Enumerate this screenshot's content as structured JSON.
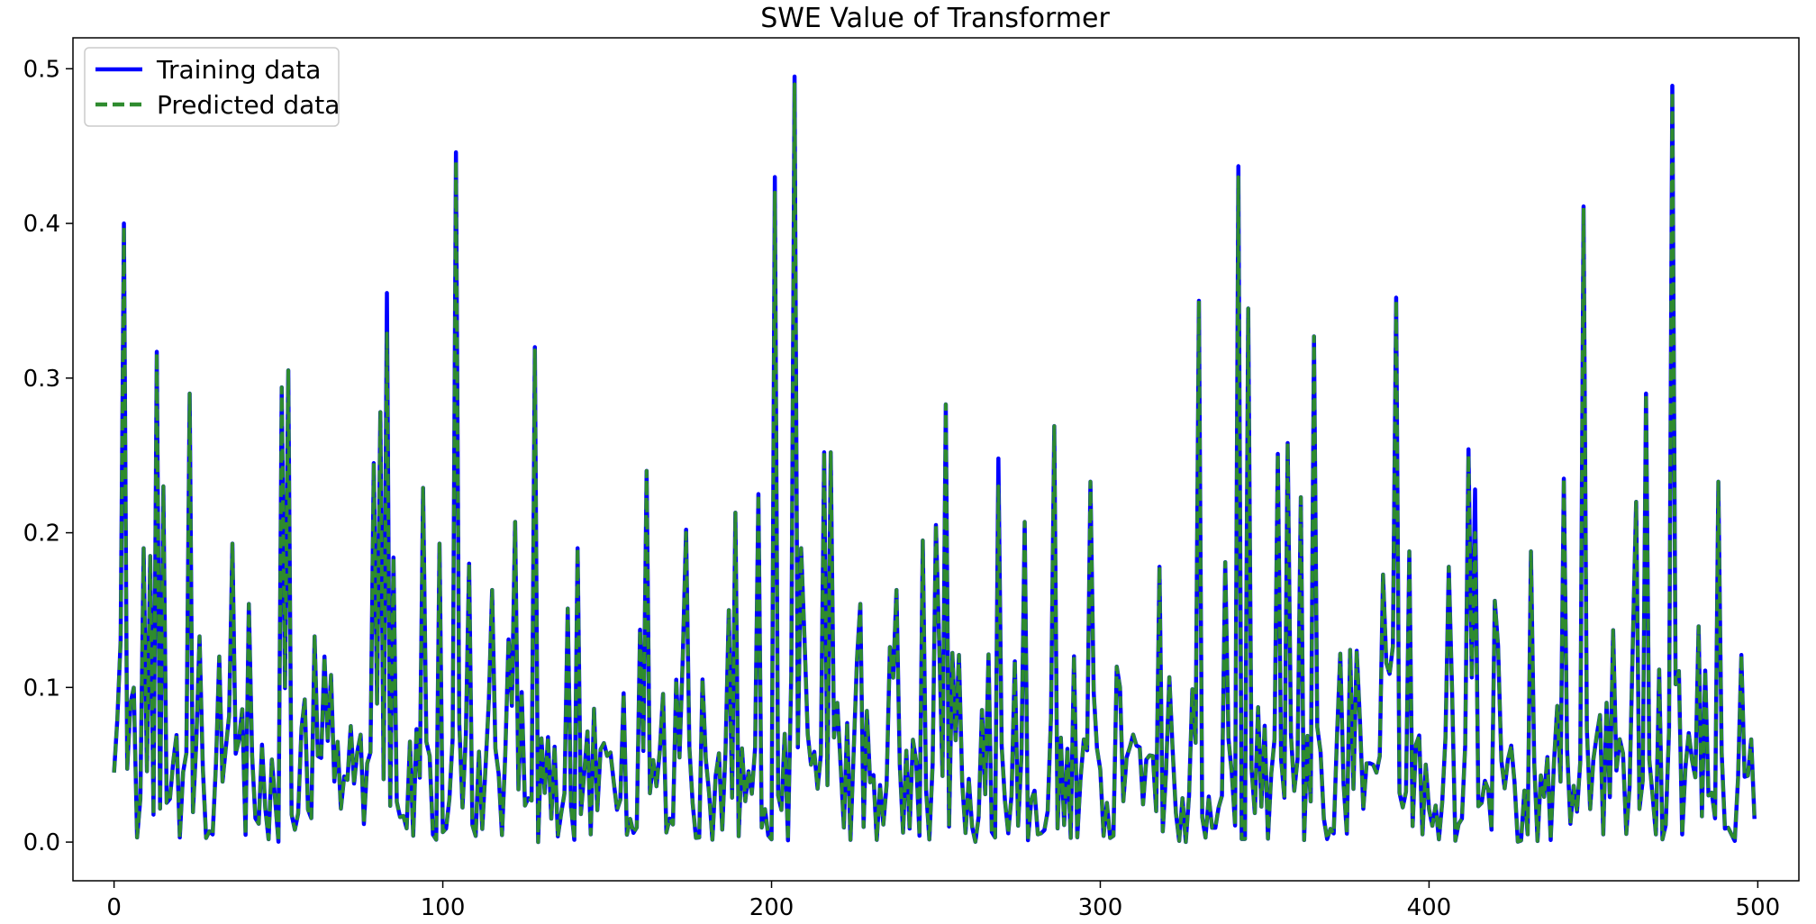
{
  "chart_data": {
    "type": "line",
    "title": "SWE Value of Transformer",
    "xlabel": "",
    "ylabel": "",
    "xlim": [
      -12.5,
      512.5
    ],
    "ylim": [
      -0.025,
      0.52
    ],
    "xticks": [
      0,
      100,
      200,
      300,
      400,
      500
    ],
    "yticks": [
      0.0,
      0.1,
      0.2,
      0.3,
      0.4,
      0.5
    ],
    "ytick_labels": [
      "0.0",
      "0.1",
      "0.2",
      "0.3",
      "0.4",
      "0.5"
    ],
    "grid": false,
    "legend": "top-left",
    "x_range": [
      0,
      499
    ],
    "series": [
      {
        "name": "Training data",
        "style": "solid",
        "color": "#0000ff",
        "peaks": [
          [
            0,
            0.045
          ],
          [
            3,
            0.4
          ],
          [
            5,
            0.09
          ],
          [
            7,
            0.003
          ],
          [
            9,
            0.19
          ],
          [
            11,
            0.185
          ],
          [
            13,
            0.317
          ],
          [
            15,
            0.23
          ],
          [
            17,
            0.028
          ],
          [
            20,
            0.003
          ],
          [
            23,
            0.29
          ],
          [
            26,
            0.133
          ],
          [
            29,
            0.007
          ],
          [
            32,
            0.12
          ],
          [
            36,
            0.193
          ],
          [
            41,
            0.154
          ],
          [
            51,
            0.294
          ],
          [
            53,
            0.305
          ],
          [
            55,
            0.008
          ],
          [
            61,
            0.133
          ],
          [
            64,
            0.12
          ],
          [
            72,
            0.075
          ],
          [
            79,
            0.245
          ],
          [
            81,
            0.278
          ],
          [
            83,
            0.355
          ],
          [
            85,
            0.184
          ],
          [
            94,
            0.229
          ],
          [
            99,
            0.193
          ],
          [
            104,
            0.446
          ],
          [
            108,
            0.18
          ],
          [
            110,
            0.004
          ],
          [
            115,
            0.163
          ],
          [
            122,
            0.207
          ],
          [
            128,
            0.32
          ],
          [
            138,
            0.151
          ],
          [
            141,
            0.19
          ],
          [
            145,
            0.005
          ],
          [
            162,
            0.24
          ],
          [
            171,
            0.105
          ],
          [
            174,
            0.202
          ],
          [
            187,
            0.15
          ],
          [
            189,
            0.213
          ],
          [
            196,
            0.225
          ],
          [
            201,
            0.43
          ],
          [
            204,
            0.07
          ],
          [
            207,
            0.495
          ],
          [
            209,
            0.19
          ],
          [
            216,
            0.252
          ],
          [
            218,
            0.252
          ],
          [
            220,
            0.09
          ],
          [
            227,
            0.154
          ],
          [
            238,
            0.163
          ],
          [
            246,
            0.195
          ],
          [
            250,
            0.205
          ],
          [
            253,
            0.283
          ],
          [
            257,
            0.121
          ],
          [
            269,
            0.248
          ],
          [
            277,
            0.207
          ],
          [
            286,
            0.269
          ],
          [
            297,
            0.233
          ],
          [
            301,
            0.004
          ],
          [
            306,
            0.1
          ],
          [
            318,
            0.178
          ],
          [
            330,
            0.35
          ],
          [
            338,
            0.181
          ],
          [
            342,
            0.437
          ],
          [
            343,
            0.002
          ],
          [
            345,
            0.345
          ],
          [
            354,
            0.251
          ],
          [
            357,
            0.258
          ],
          [
            361,
            0.223
          ],
          [
            365,
            0.327
          ],
          [
            369,
            0.002
          ],
          [
            383,
            0.05
          ],
          [
            386,
            0.173
          ],
          [
            390,
            0.352
          ],
          [
            394,
            0.188
          ],
          [
            406,
            0.178
          ],
          [
            412,
            0.254
          ],
          [
            414,
            0.228
          ],
          [
            420,
            0.156
          ],
          [
            428,
            0.001
          ],
          [
            431,
            0.188
          ],
          [
            441,
            0.235
          ],
          [
            447,
            0.411
          ],
          [
            453,
            0.005
          ],
          [
            456,
            0.137
          ],
          [
            463,
            0.22
          ],
          [
            466,
            0.29
          ],
          [
            469,
            0.005
          ],
          [
            474,
            0.489
          ],
          [
            477,
            0.005
          ],
          [
            488,
            0.233
          ],
          [
            492,
            0.005
          ],
          [
            495,
            0.121
          ],
          [
            499,
            0.015
          ]
        ]
      },
      {
        "name": "Predicted data",
        "style": "dashed",
        "color": "#2e8b2e",
        "peaks": [
          [
            0,
            0.045
          ],
          [
            3,
            0.398
          ],
          [
            5,
            0.09
          ],
          [
            7,
            0.003
          ],
          [
            9,
            0.19
          ],
          [
            11,
            0.185
          ],
          [
            13,
            0.316
          ],
          [
            15,
            0.23
          ],
          [
            17,
            0.028
          ],
          [
            20,
            0.003
          ],
          [
            23,
            0.29
          ],
          [
            26,
            0.133
          ],
          [
            29,
            0.007
          ],
          [
            32,
            0.12
          ],
          [
            36,
            0.193
          ],
          [
            41,
            0.154
          ],
          [
            51,
            0.294
          ],
          [
            53,
            0.305
          ],
          [
            55,
            0.008
          ],
          [
            61,
            0.133
          ],
          [
            64,
            0.12
          ],
          [
            72,
            0.075
          ],
          [
            79,
            0.245
          ],
          [
            81,
            0.278
          ],
          [
            83,
            0.33
          ],
          [
            85,
            0.184
          ],
          [
            94,
            0.229
          ],
          [
            99,
            0.193
          ],
          [
            104,
            0.44
          ],
          [
            108,
            0.18
          ],
          [
            110,
            0.004
          ],
          [
            115,
            0.163
          ],
          [
            122,
            0.207
          ],
          [
            128,
            0.318
          ],
          [
            138,
            0.151
          ],
          [
            141,
            0.19
          ],
          [
            145,
            0.005
          ],
          [
            162,
            0.24
          ],
          [
            171,
            0.105
          ],
          [
            174,
            0.2
          ],
          [
            187,
            0.15
          ],
          [
            189,
            0.213
          ],
          [
            196,
            0.225
          ],
          [
            201,
            0.42
          ],
          [
            204,
            0.07
          ],
          [
            207,
            0.49
          ],
          [
            209,
            0.19
          ],
          [
            216,
            0.252
          ],
          [
            218,
            0.252
          ],
          [
            220,
            0.09
          ],
          [
            227,
            0.154
          ],
          [
            238,
            0.163
          ],
          [
            246,
            0.195
          ],
          [
            250,
            0.205
          ],
          [
            253,
            0.283
          ],
          [
            257,
            0.121
          ],
          [
            269,
            0.23
          ],
          [
            277,
            0.207
          ],
          [
            286,
            0.269
          ],
          [
            297,
            0.233
          ],
          [
            301,
            0.004
          ],
          [
            306,
            0.1
          ],
          [
            318,
            0.178
          ],
          [
            330,
            0.35
          ],
          [
            338,
            0.181
          ],
          [
            342,
            0.43
          ],
          [
            343,
            0.002
          ],
          [
            345,
            0.345
          ],
          [
            354,
            0.251
          ],
          [
            357,
            0.258
          ],
          [
            361,
            0.223
          ],
          [
            365,
            0.327
          ],
          [
            369,
            0.002
          ],
          [
            383,
            0.05
          ],
          [
            386,
            0.173
          ],
          [
            390,
            0.35
          ],
          [
            394,
            0.188
          ],
          [
            406,
            0.178
          ],
          [
            412,
            0.25
          ],
          [
            414,
            0.2
          ],
          [
            420,
            0.156
          ],
          [
            428,
            0.001
          ],
          [
            431,
            0.188
          ],
          [
            441,
            0.235
          ],
          [
            447,
            0.41
          ],
          [
            453,
            0.005
          ],
          [
            456,
            0.137
          ],
          [
            463,
            0.22
          ],
          [
            466,
            0.29
          ],
          [
            469,
            0.005
          ],
          [
            474,
            0.485
          ],
          [
            477,
            0.005
          ],
          [
            488,
            0.233
          ],
          [
            492,
            0.005
          ],
          [
            495,
            0.121
          ],
          [
            499,
            0.015
          ]
        ]
      }
    ]
  }
}
